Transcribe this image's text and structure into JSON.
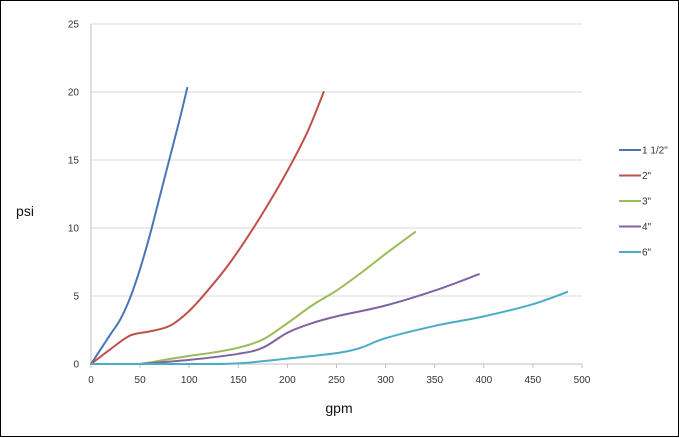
{
  "chart_data": {
    "type": "line",
    "xlabel": "gpm",
    "ylabel": "psi",
    "xlim": [
      0,
      500
    ],
    "ylim": [
      0,
      25
    ],
    "xticks": [
      0,
      50,
      100,
      150,
      200,
      250,
      300,
      350,
      400,
      450,
      500
    ],
    "yticks": [
      0,
      5,
      10,
      15,
      20,
      25
    ],
    "grid": "horizontal",
    "legend_position": "right",
    "series": [
      {
        "name": "1 1/2\"",
        "color": "#4a76b4",
        "x": [
          0,
          10,
          20,
          30,
          40,
          50,
          60,
          70,
          80,
          90,
          98
        ],
        "y": [
          0,
          1.1,
          2.2,
          3.3,
          4.9,
          7.0,
          9.5,
          12.3,
          15.1,
          17.9,
          20.3
        ]
      },
      {
        "name": "2\"",
        "color": "#c0504d",
        "x": [
          0,
          20,
          40,
          60,
          80,
          100,
          120,
          140,
          160,
          180,
          200,
          220,
          237
        ],
        "y": [
          0,
          1.1,
          2.1,
          2.4,
          2.8,
          3.9,
          5.5,
          7.3,
          9.4,
          11.7,
          14.2,
          17.0,
          20.0
        ]
      },
      {
        "name": "3\"",
        "color": "#9bbb59",
        "x": [
          50,
          75,
          100,
          125,
          150,
          175,
          200,
          225,
          250,
          275,
          300,
          330
        ],
        "y": [
          0,
          0.3,
          0.6,
          0.85,
          1.2,
          1.8,
          3.0,
          4.3,
          5.4,
          6.7,
          8.1,
          9.7
        ]
      },
      {
        "name": "4\"",
        "color": "#8064a2",
        "x": [
          50,
          100,
          150,
          175,
          200,
          225,
          250,
          300,
          350,
          395
        ],
        "y": [
          0,
          0.3,
          0.75,
          1.2,
          2.3,
          3.0,
          3.5,
          4.3,
          5.4,
          6.6
        ]
      },
      {
        "name": "6\"",
        "color": "#4bacc6",
        "x": [
          0,
          100,
          150,
          200,
          250,
          275,
          300,
          350,
          400,
          450,
          485
        ],
        "y": [
          0,
          0,
          0.05,
          0.4,
          0.8,
          1.2,
          1.9,
          2.8,
          3.5,
          4.4,
          5.3
        ]
      }
    ]
  }
}
